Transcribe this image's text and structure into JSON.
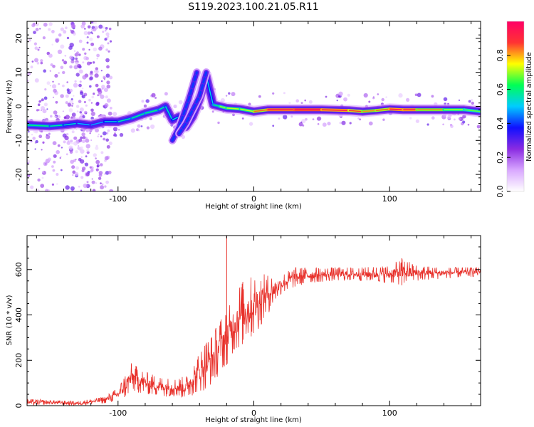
{
  "figure": {
    "title": "S119.2023.100.21.05.R11"
  },
  "chart_data": [
    {
      "type": "heatmap",
      "name": "spectrogram",
      "xlabel": "Height of straight line (km)",
      "ylabel": "Frequency (Hz)",
      "xlim": [
        -167,
        167
      ],
      "ylim": [
        -25,
        25
      ],
      "xticks": [
        -100,
        0,
        100
      ],
      "yticks": [
        -20,
        -10,
        0,
        10,
        20
      ],
      "grid": false,
      "colorbar": {
        "label": "Normalized spectral amplitude",
        "range": [
          0,
          1
        ],
        "ticks": [
          0.0,
          0.2,
          0.4,
          0.6,
          0.8
        ],
        "colormap": [
          "#ffffff",
          "#d9a8ff",
          "#8a2be2",
          "#1010ff",
          "#00ccff",
          "#00ff55",
          "#ffff00",
          "#ff3333",
          "#ff0066"
        ]
      },
      "ridge": [
        {
          "x": -167,
          "freq": -5.5,
          "amp": 0.45
        },
        {
          "x": -150,
          "freq": -5.8,
          "amp": 0.45
        },
        {
          "x": -140,
          "freq": -5.5,
          "amp": 0.4
        },
        {
          "x": -130,
          "freq": -5.0,
          "amp": 0.38
        },
        {
          "x": -120,
          "freq": -5.5,
          "amp": 0.3
        },
        {
          "x": -110,
          "freq": -4.5,
          "amp": 0.35
        },
        {
          "x": -100,
          "freq": -4.5,
          "amp": 0.4
        },
        {
          "x": -90,
          "freq": -3.5,
          "amp": 0.42
        },
        {
          "x": -80,
          "freq": -2.0,
          "amp": 0.45
        },
        {
          "x": -70,
          "freq": -1.0,
          "amp": 0.45
        },
        {
          "x": -65,
          "freq": 0.0,
          "amp": 0.4
        },
        {
          "x": -60,
          "freq": -4.0,
          "amp": 0.4
        },
        {
          "x": -55,
          "freq": -3.0,
          "amp": 0.35
        },
        {
          "x": -50,
          "freq": -6.0,
          "amp": 0.35
        },
        {
          "x": -45,
          "freq": -3.0,
          "amp": 0.35
        },
        {
          "x": -40,
          "freq": 2.0,
          "amp": 0.35
        },
        {
          "x": -35,
          "freq": 9.0,
          "amp": 0.35
        },
        {
          "x": -30,
          "freq": 0.5,
          "amp": 0.4
        },
        {
          "x": -25,
          "freq": 0.0,
          "amp": 0.5
        },
        {
          "x": -20,
          "freq": -0.5,
          "amp": 0.6
        },
        {
          "x": -10,
          "freq": -0.8,
          "amp": 0.55
        },
        {
          "x": 0,
          "freq": -1.5,
          "amp": 0.6
        },
        {
          "x": 10,
          "freq": -1.0,
          "amp": 0.8
        },
        {
          "x": 30,
          "freq": -1.0,
          "amp": 0.85
        },
        {
          "x": 50,
          "freq": -1.0,
          "amp": 0.85
        },
        {
          "x": 70,
          "freq": -1.2,
          "amp": 0.75
        },
        {
          "x": 80,
          "freq": -1.5,
          "amp": 0.7
        },
        {
          "x": 90,
          "freq": -1.2,
          "amp": 0.65
        },
        {
          "x": 100,
          "freq": -0.8,
          "amp": 0.75
        },
        {
          "x": 110,
          "freq": -1.0,
          "amp": 0.85
        },
        {
          "x": 120,
          "freq": -1.0,
          "amp": 0.75
        },
        {
          "x": 140,
          "freq": -1.0,
          "amp": 0.6
        },
        {
          "x": 155,
          "freq": -1.0,
          "amp": 0.55
        },
        {
          "x": 167,
          "freq": -1.5,
          "amp": 0.5
        }
      ],
      "secondary_tracks": [
        {
          "points": [
            {
              "x": -60,
              "freq": -10.0
            },
            {
              "x": -55,
              "freq": -6.0
            },
            {
              "x": -48,
              "freq": 2.0
            },
            {
              "x": -45,
              "freq": 6.0
            },
            {
              "x": -42,
              "freq": 10.0
            }
          ],
          "amp": 0.3
        },
        {
          "points": [
            {
              "x": -55,
              "freq": -8.0
            },
            {
              "x": -50,
              "freq": -5.0
            },
            {
              "x": -40,
              "freq": 3.0
            },
            {
              "x": -35,
              "freq": 10.0
            }
          ],
          "amp": 0.3
        }
      ]
    },
    {
      "type": "line",
      "name": "snr",
      "xlabel": "Height of straight line (km)",
      "ylabel": "SNR (10 * v/v)",
      "xlim": [
        -167,
        167
      ],
      "ylim": [
        0,
        750
      ],
      "xticks": [
        -100,
        0,
        100
      ],
      "yticks": [
        0,
        200,
        400,
        600
      ],
      "grid": false,
      "color": "#e8302a",
      "envelope": [
        {
          "x": -167,
          "min": 0,
          "max": 30
        },
        {
          "x": -150,
          "min": 5,
          "max": 25
        },
        {
          "x": -130,
          "min": 0,
          "max": 20
        },
        {
          "x": -110,
          "min": 10,
          "max": 40
        },
        {
          "x": -100,
          "min": 20,
          "max": 80
        },
        {
          "x": -95,
          "min": 30,
          "max": 140
        },
        {
          "x": -90,
          "min": 60,
          "max": 190
        },
        {
          "x": -80,
          "min": 50,
          "max": 150
        },
        {
          "x": -70,
          "min": 40,
          "max": 130
        },
        {
          "x": -60,
          "min": 40,
          "max": 120
        },
        {
          "x": -50,
          "min": 30,
          "max": 130
        },
        {
          "x": -40,
          "min": 60,
          "max": 240
        },
        {
          "x": -35,
          "min": 70,
          "max": 300
        },
        {
          "x": -30,
          "min": 100,
          "max": 320
        },
        {
          "x": -25,
          "min": 140,
          "max": 390
        },
        {
          "x": -20,
          "min": 180,
          "max": 420
        },
        {
          "x": -15,
          "min": 230,
          "max": 480
        },
        {
          "x": -10,
          "min": 250,
          "max": 550
        },
        {
          "x": -5,
          "min": 280,
          "max": 560
        },
        {
          "x": 0,
          "min": 300,
          "max": 580
        },
        {
          "x": 10,
          "min": 400,
          "max": 580
        },
        {
          "x": 20,
          "min": 490,
          "max": 580
        },
        {
          "x": 30,
          "min": 520,
          "max": 610
        },
        {
          "x": 40,
          "min": 540,
          "max": 610
        },
        {
          "x": 60,
          "min": 550,
          "max": 610
        },
        {
          "x": 80,
          "min": 550,
          "max": 610
        },
        {
          "x": 100,
          "min": 540,
          "max": 620
        },
        {
          "x": 110,
          "min": 530,
          "max": 650
        },
        {
          "x": 120,
          "min": 550,
          "max": 620
        },
        {
          "x": 140,
          "min": 560,
          "max": 610
        },
        {
          "x": 167,
          "min": 570,
          "max": 610
        }
      ],
      "spikes": [
        {
          "x": -20,
          "y": 750
        },
        {
          "x": 109,
          "y": 650
        }
      ]
    }
  ]
}
